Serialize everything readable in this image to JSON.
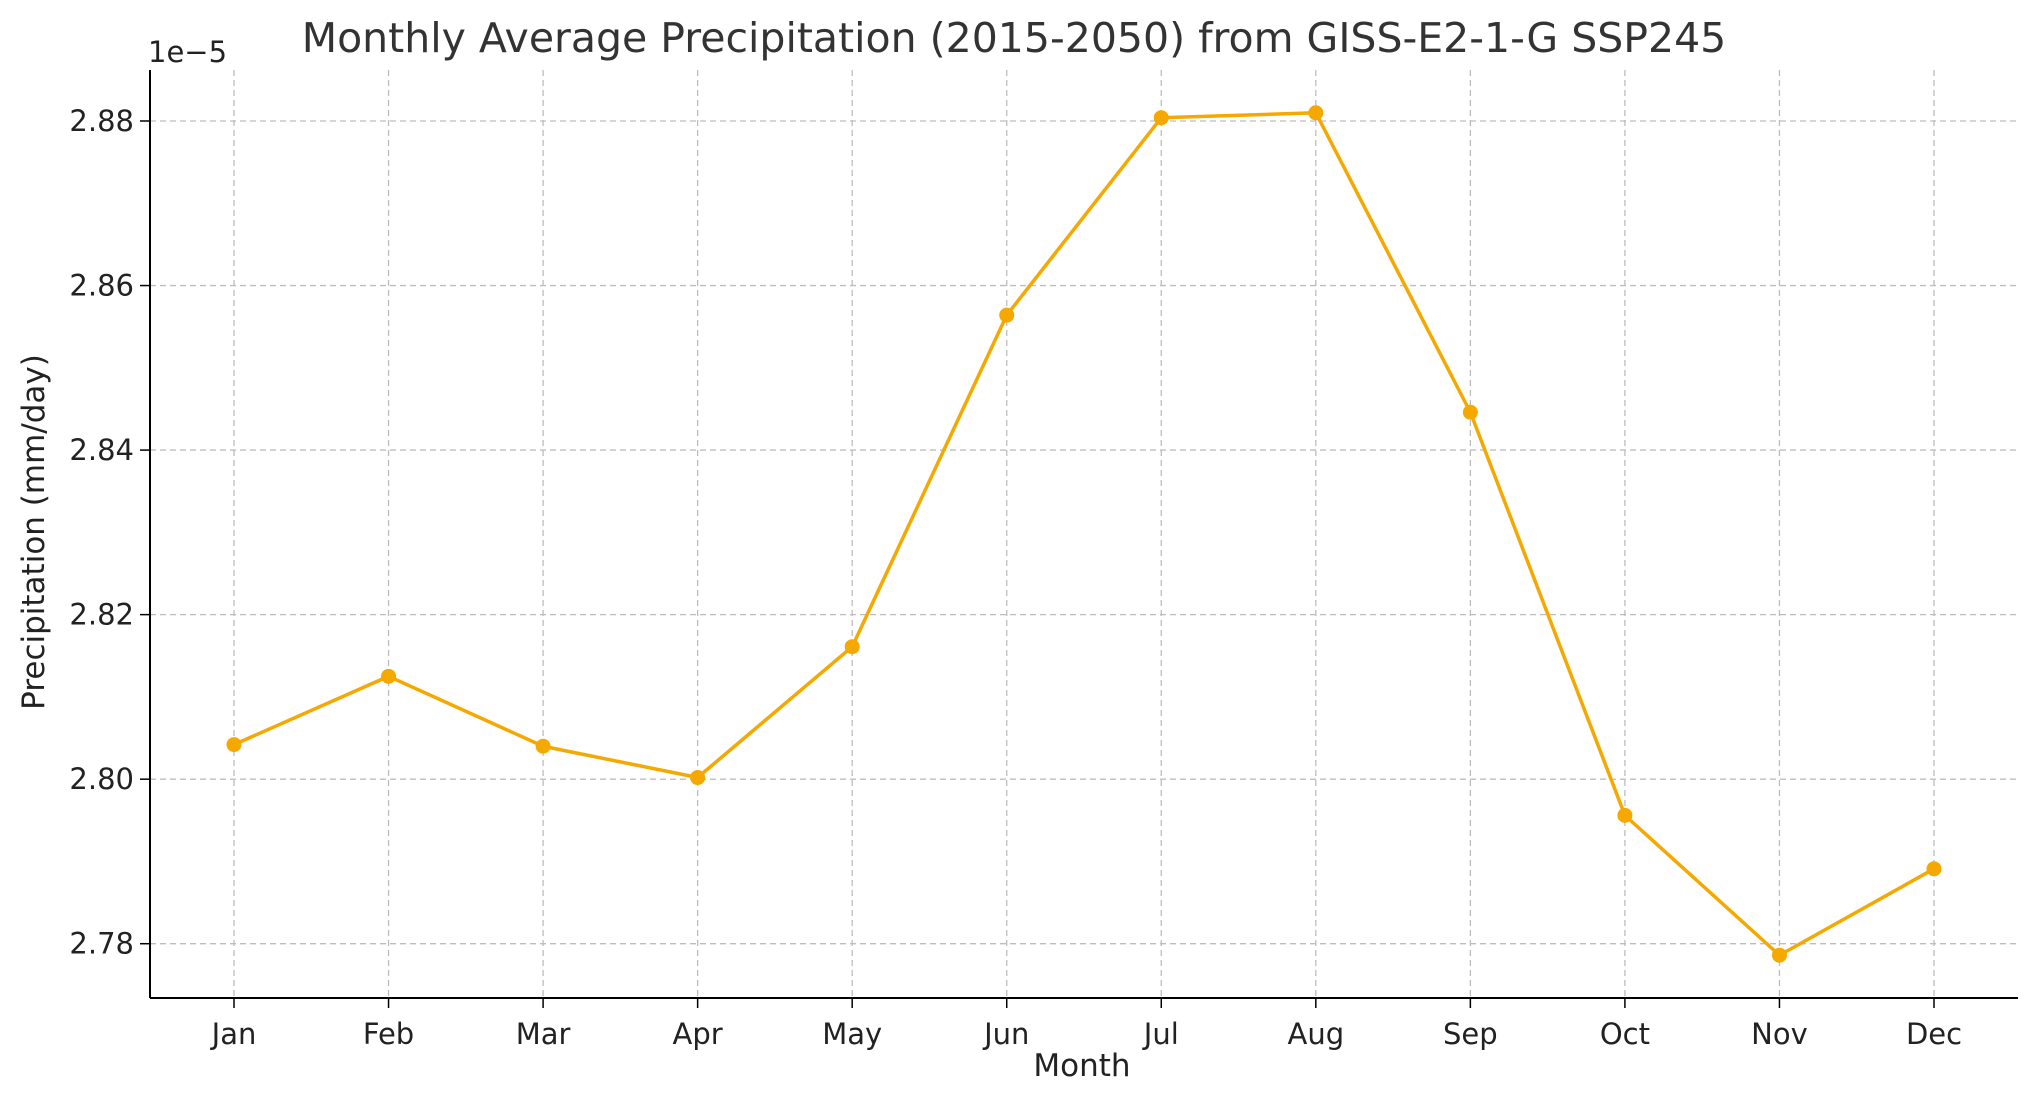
{
  "chart_data": {
    "type": "line",
    "title": "Monthly Average Precipitation (2015-2050) from GISS-E2-1-G SSP245",
    "xlabel": "Month",
    "ylabel": "Precipitation (mm/day)",
    "offset_text": "1e−5",
    "categories": [
      "Jan",
      "Feb",
      "Mar",
      "Apr",
      "May",
      "Jun",
      "Jul",
      "Aug",
      "Sep",
      "Oct",
      "Nov",
      "Dec"
    ],
    "y_ticks": [
      "2.78",
      "2.80",
      "2.82",
      "2.84",
      "2.86",
      "2.88"
    ],
    "y_tick_values": [
      2.78,
      2.8,
      2.82,
      2.84,
      2.86,
      2.88
    ],
    "ylim": [
      2.7734,
      2.8862
    ],
    "series": [
      {
        "values": [
          2.8042,
          2.8125,
          2.804,
          2.8002,
          2.8161,
          2.8564,
          2.8804,
          2.881,
          2.8446,
          2.7956,
          2.7786,
          2.7891
        ],
        "color": "#F5A800",
        "marker": "circle"
      }
    ],
    "grid": true,
    "legend": "none"
  }
}
